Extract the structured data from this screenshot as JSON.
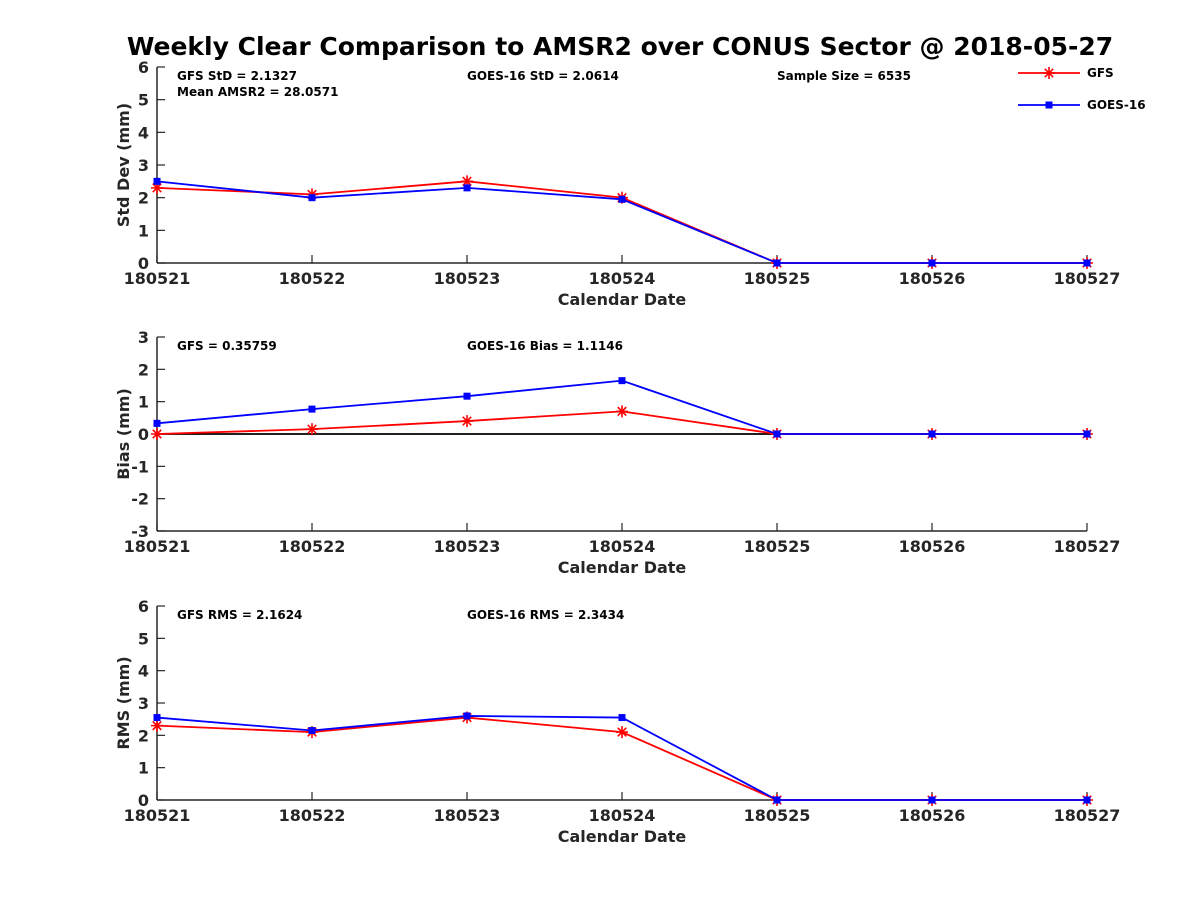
{
  "figure": {
    "title": "Weekly Clear Comparison to AMSR2 over CONUS Sector @ 2018-05-27"
  },
  "legend": {
    "placement": "top-right",
    "items": [
      {
        "name": "GFS",
        "color": "#ff0000",
        "marker": "star"
      },
      {
        "name": "GOES-16",
        "color": "#0000ff",
        "marker": "square"
      }
    ]
  },
  "chart_data": [
    {
      "type": "line",
      "xlabel": "Calendar Date",
      "ylabel": "Std Dev (mm)",
      "categories": [
        "180521",
        "180522",
        "180523",
        "180524",
        "180525",
        "180526",
        "180527"
      ],
      "ylim": [
        0,
        6
      ],
      "yticks": [
        "0",
        "1",
        "2",
        "3",
        "4",
        "5",
        "6"
      ],
      "zero_line": false,
      "annotations": {
        "gfs": "GFS StD = 2.1327",
        "goes": "GOES-16 StD = 2.0614",
        "sample": "Sample Size = 6535",
        "mean": "Mean AMSR2 = 28.0571"
      },
      "series": [
        {
          "name": "GFS",
          "color": "#ff0000",
          "marker": "star",
          "values": [
            2.3,
            2.1,
            2.5,
            2.0,
            0,
            0,
            0
          ]
        },
        {
          "name": "GOES-16",
          "color": "#0000ff",
          "marker": "square",
          "values": [
            2.5,
            2.0,
            2.3,
            1.95,
            0,
            0,
            0
          ]
        }
      ]
    },
    {
      "type": "line",
      "xlabel": "Calendar Date",
      "ylabel": "Bias (mm)",
      "categories": [
        "180521",
        "180522",
        "180523",
        "180524",
        "180525",
        "180526",
        "180527"
      ],
      "ylim": [
        -3,
        3
      ],
      "yticks": [
        "-3",
        "-2",
        "-1",
        "0",
        "1",
        "2",
        "3"
      ],
      "zero_line": true,
      "annotations": {
        "gfs": "GFS = 0.35759",
        "goes": "GOES-16 Bias  = 1.1146"
      },
      "series": [
        {
          "name": "GFS",
          "color": "#ff0000",
          "marker": "star",
          "values": [
            0.0,
            0.15,
            0.4,
            0.7,
            0,
            0,
            0
          ]
        },
        {
          "name": "GOES-16",
          "color": "#0000ff",
          "marker": "square",
          "values": [
            0.33,
            0.77,
            1.17,
            1.65,
            0,
            0,
            0
          ]
        }
      ]
    },
    {
      "type": "line",
      "xlabel": "Calendar Date",
      "ylabel": "RMS (mm)",
      "categories": [
        "180521",
        "180522",
        "180523",
        "180524",
        "180525",
        "180526",
        "180527"
      ],
      "ylim": [
        0,
        6
      ],
      "yticks": [
        "0",
        "1",
        "2",
        "3",
        "4",
        "5",
        "6"
      ],
      "zero_line": false,
      "annotations": {
        "gfs": "GFS RMS = 2.1624",
        "goes": "GOES-16 RMS = 2.3434"
      },
      "series": [
        {
          "name": "GFS",
          "color": "#ff0000",
          "marker": "star",
          "values": [
            2.3,
            2.1,
            2.55,
            2.1,
            0,
            0,
            0
          ]
        },
        {
          "name": "GOES-16",
          "color": "#0000ff",
          "marker": "square",
          "values": [
            2.55,
            2.15,
            2.6,
            2.55,
            0,
            0,
            0
          ]
        }
      ]
    }
  ]
}
